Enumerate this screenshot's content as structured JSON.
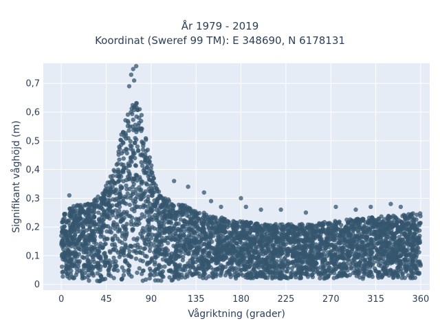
{
  "chart_data": {
    "type": "scatter",
    "title": "År 1979 - 2019",
    "subtitle": "Koordinat (Sweref 99 TM): E 348690, N 6178131",
    "xlabel": "Vågriktning (grader)",
    "ylabel": "Signifikant våghöjd (m)",
    "xlim": [
      -18,
      369
    ],
    "ylim": [
      -0.02,
      0.77
    ],
    "x_ticks": [
      "0",
      "45",
      "90",
      "135",
      "180",
      "225",
      "270",
      "315",
      "360"
    ],
    "y_ticks": [
      "0",
      "0,1",
      "0,2",
      "0,3",
      "0,4",
      "0,5",
      "0,6",
      "0,7"
    ],
    "grid": true,
    "marker_color": "#34566e",
    "background_color": "#e5ecf6",
    "envelope": {
      "x": [
        0,
        10,
        20,
        30,
        40,
        50,
        55,
        60,
        65,
        70,
        75,
        80,
        85,
        90,
        95,
        100,
        110,
        120,
        135,
        150,
        180,
        200,
        225,
        250,
        270,
        300,
        330,
        360
      ],
      "y_upper": [
        0.25,
        0.27,
        0.28,
        0.29,
        0.32,
        0.38,
        0.44,
        0.52,
        0.58,
        0.62,
        0.65,
        0.6,
        0.52,
        0.42,
        0.34,
        0.31,
        0.29,
        0.28,
        0.26,
        0.24,
        0.22,
        0.21,
        0.21,
        0.21,
        0.22,
        0.23,
        0.24,
        0.25
      ],
      "y_lower": [
        0.02,
        0.02,
        0.02,
        0.01,
        0.01,
        0.01,
        0.01,
        0.01,
        0.01,
        0.01,
        0.01,
        0.01,
        0.01,
        0.01,
        0.01,
        0.01,
        0.01,
        0.02,
        0.02,
        0.02,
        0.02,
        0.02,
        0.02,
        0.02,
        0.02,
        0.02,
        0.02,
        0.02
      ]
    },
    "outliers": [
      {
        "x": 72,
        "y": 0.75
      },
      {
        "x": 75,
        "y": 0.76
      },
      {
        "x": 70,
        "y": 0.73
      },
      {
        "x": 73,
        "y": 0.71
      },
      {
        "x": 68,
        "y": 0.69
      },
      {
        "x": 8,
        "y": 0.31
      },
      {
        "x": 113,
        "y": 0.36
      },
      {
        "x": 127,
        "y": 0.34
      },
      {
        "x": 143,
        "y": 0.32
      },
      {
        "x": 150,
        "y": 0.29
      },
      {
        "x": 160,
        "y": 0.27
      },
      {
        "x": 180,
        "y": 0.3
      },
      {
        "x": 185,
        "y": 0.27
      },
      {
        "x": 200,
        "y": 0.26
      },
      {
        "x": 220,
        "y": 0.26
      },
      {
        "x": 245,
        "y": 0.25
      },
      {
        "x": 275,
        "y": 0.27
      },
      {
        "x": 295,
        "y": 0.26
      },
      {
        "x": 310,
        "y": 0.27
      },
      {
        "x": 330,
        "y": 0.28
      },
      {
        "x": 340,
        "y": 0.27
      }
    ]
  }
}
